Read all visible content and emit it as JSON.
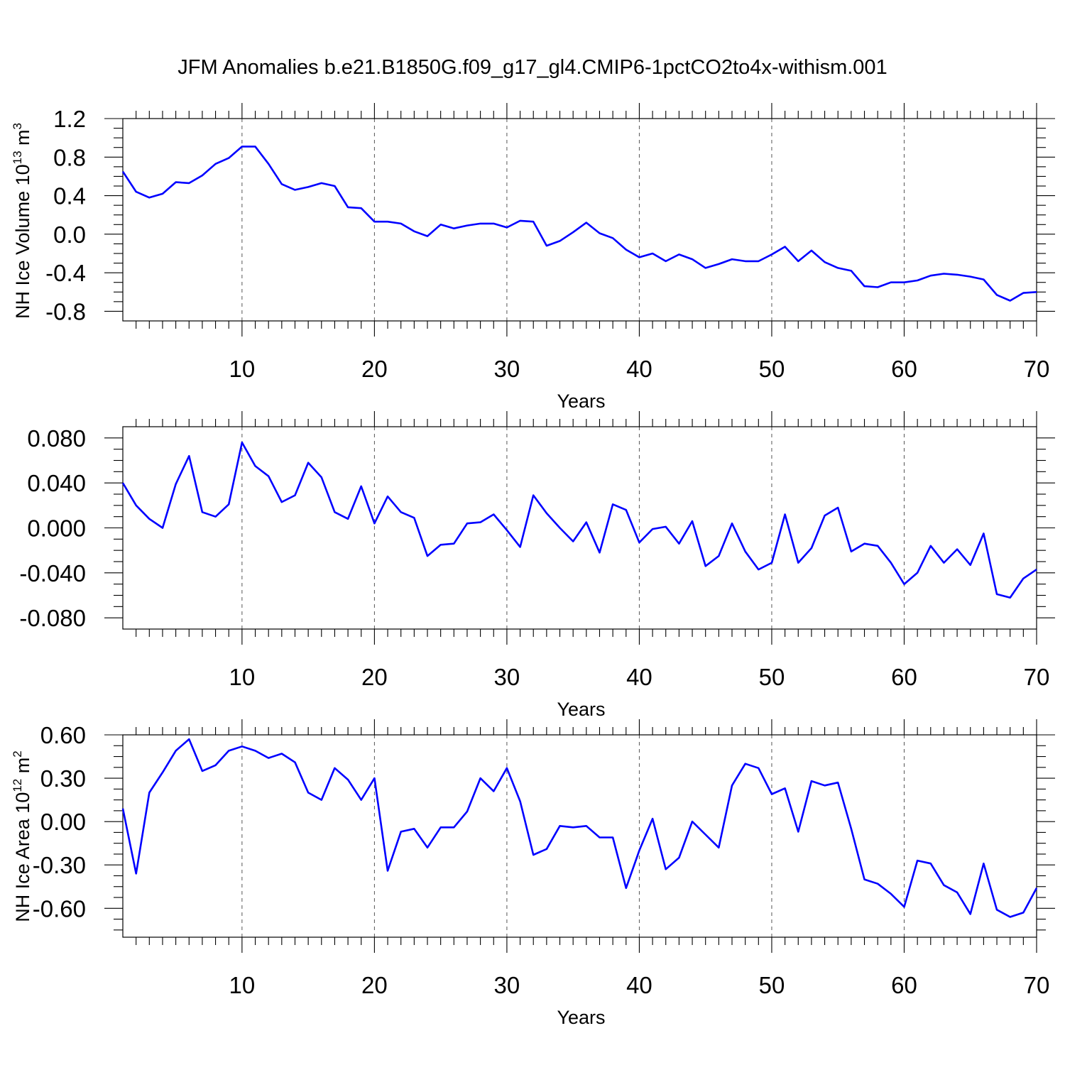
{
  "title": "JFM Anomalies b.e21.B1850G.f09_g17_gl4.CMIP6-1pctCO2to4x-withism.001",
  "colors": {
    "series": "#0000ff",
    "axis": "#000000",
    "grid": "#555555"
  },
  "chart_data": [
    {
      "type": "line",
      "xlabel": "Years",
      "ylabel": {
        "text": "NH Ice Volume 10",
        "sup": "13",
        "unit": " m",
        "unit_sup": "3"
      },
      "xlim": [
        1,
        70
      ],
      "ylim": [
        -0.9,
        1.2
      ],
      "xticks": [
        10,
        20,
        30,
        40,
        50,
        60,
        70
      ],
      "yticks": [
        "1.2",
        "0.8",
        "0.4",
        "0.0",
        "-0.4",
        "-0.8"
      ],
      "grid": "vertical dashed at major x ticks",
      "x": [
        1,
        2,
        3,
        4,
        5,
        6,
        7,
        8,
        9,
        10,
        11,
        12,
        13,
        14,
        15,
        16,
        17,
        18,
        19,
        20,
        21,
        22,
        23,
        24,
        25,
        26,
        27,
        28,
        29,
        30,
        31,
        32,
        33,
        34,
        35,
        36,
        37,
        38,
        39,
        40,
        41,
        42,
        43,
        44,
        45,
        46,
        47,
        48,
        49,
        50,
        51,
        52,
        53,
        54,
        55,
        56,
        57,
        58,
        59,
        60,
        61,
        62,
        63,
        64,
        65,
        66,
        67,
        68,
        69,
        70
      ],
      "values": [
        0.65,
        0.44,
        0.38,
        0.42,
        0.54,
        0.53,
        0.61,
        0.73,
        0.79,
        0.91,
        0.91,
        0.73,
        0.52,
        0.46,
        0.49,
        0.53,
        0.5,
        0.28,
        0.27,
        0.13,
        0.13,
        0.11,
        0.03,
        -0.02,
        0.1,
        0.06,
        0.09,
        0.11,
        0.11,
        0.07,
        0.14,
        0.13,
        -0.12,
        -0.07,
        0.02,
        0.12,
        0.01,
        -0.04,
        -0.16,
        -0.24,
        -0.2,
        -0.28,
        -0.21,
        -0.26,
        -0.35,
        -0.31,
        -0.26,
        -0.28,
        -0.28,
        -0.21,
        -0.13,
        -0.28,
        -0.17,
        -0.29,
        -0.35,
        -0.38,
        -0.54,
        -0.55,
        -0.5,
        -0.5,
        -0.48,
        -0.43,
        -0.41,
        -0.42,
        -0.44,
        -0.47,
        -0.63,
        -0.69,
        -0.61,
        -0.6
      ]
    },
    {
      "type": "line",
      "xlabel": "Years",
      "ylabel": {
        "text": "",
        "sup": "",
        "unit": "",
        "unit_sup": ""
      },
      "xlim": [
        1,
        70
      ],
      "ylim": [
        -0.09,
        0.09
      ],
      "xticks": [
        10,
        20,
        30,
        40,
        50,
        60,
        70
      ],
      "yticks": [
        "0.080",
        "0.040",
        "0.000",
        "-0.040",
        "-0.080"
      ],
      "grid": "vertical dashed at major x ticks",
      "x": [
        1,
        2,
        3,
        4,
        5,
        6,
        7,
        8,
        9,
        10,
        11,
        12,
        13,
        14,
        15,
        16,
        17,
        18,
        19,
        20,
        21,
        22,
        23,
        24,
        25,
        26,
        27,
        28,
        29,
        30,
        31,
        32,
        33,
        34,
        35,
        36,
        37,
        38,
        39,
        40,
        41,
        42,
        43,
        44,
        45,
        46,
        47,
        48,
        49,
        50,
        51,
        52,
        53,
        54,
        55,
        56,
        57,
        58,
        59,
        60,
        61,
        62,
        63,
        64,
        65,
        66,
        67,
        68,
        69,
        70
      ],
      "values": [
        0.04,
        0.02,
        0.008,
        0.0,
        0.039,
        0.064,
        0.014,
        0.01,
        0.021,
        0.076,
        0.055,
        0.046,
        0.023,
        0.029,
        0.058,
        0.045,
        0.014,
        0.008,
        0.037,
        0.004,
        0.028,
        0.014,
        0.009,
        -0.025,
        -0.015,
        -0.014,
        0.004,
        0.005,
        0.012,
        -0.002,
        -0.017,
        0.029,
        0.013,
        0.0,
        -0.012,
        0.005,
        -0.022,
        0.021,
        0.016,
        -0.013,
        -0.001,
        0.001,
        -0.014,
        0.006,
        -0.034,
        -0.025,
        0.004,
        -0.021,
        -0.037,
        -0.031,
        0.012,
        -0.031,
        -0.018,
        0.011,
        0.018,
        -0.021,
        -0.014,
        -0.016,
        -0.031,
        -0.05,
        -0.04,
        -0.016,
        -0.031,
        -0.019,
        -0.033,
        -0.005,
        -0.059,
        -0.062,
        -0.045,
        -0.037
      ]
    },
    {
      "type": "line",
      "xlabel": "Years",
      "ylabel": {
        "text": "NH Ice Area 10",
        "sup": "12",
        "unit": " m",
        "unit_sup": "2"
      },
      "xlim": [
        1,
        70
      ],
      "ylim": [
        -0.8,
        0.6
      ],
      "xticks": [
        10,
        20,
        30,
        40,
        50,
        60,
        70
      ],
      "yticks": [
        "0.60",
        "0.30",
        "0.00",
        "-0.30",
        "-0.60"
      ],
      "grid": "vertical dashed at major x ticks",
      "x": [
        1,
        2,
        3,
        4,
        5,
        6,
        7,
        8,
        9,
        10,
        11,
        12,
        13,
        14,
        15,
        16,
        17,
        18,
        19,
        20,
        21,
        22,
        23,
        24,
        25,
        26,
        27,
        28,
        29,
        30,
        31,
        32,
        33,
        34,
        35,
        36,
        37,
        38,
        39,
        40,
        41,
        42,
        43,
        44,
        45,
        46,
        47,
        48,
        49,
        50,
        51,
        52,
        53,
        54,
        55,
        56,
        57,
        58,
        59,
        60,
        61,
        62,
        63,
        64,
        65,
        66,
        67,
        68,
        69,
        70
      ],
      "values": [
        0.09,
        -0.36,
        0.2,
        0.34,
        0.49,
        0.57,
        0.35,
        0.39,
        0.49,
        0.52,
        0.49,
        0.44,
        0.47,
        0.41,
        0.2,
        0.15,
        0.37,
        0.29,
        0.15,
        0.3,
        -0.34,
        -0.07,
        -0.05,
        -0.18,
        -0.04,
        -0.04,
        0.07,
        0.3,
        0.21,
        0.37,
        0.14,
        -0.23,
        -0.19,
        -0.03,
        -0.04,
        -0.03,
        -0.11,
        -0.11,
        -0.46,
        -0.2,
        0.02,
        -0.33,
        -0.25,
        0.0,
        -0.09,
        -0.18,
        0.25,
        0.4,
        0.37,
        0.19,
        0.23,
        -0.07,
        0.28,
        0.25,
        0.27,
        -0.05,
        -0.4,
        -0.43,
        -0.5,
        -0.59,
        -0.27,
        -0.29,
        -0.44,
        -0.49,
        -0.64,
        -0.29,
        -0.61,
        -0.66,
        -0.63,
        -0.46
      ]
    }
  ]
}
